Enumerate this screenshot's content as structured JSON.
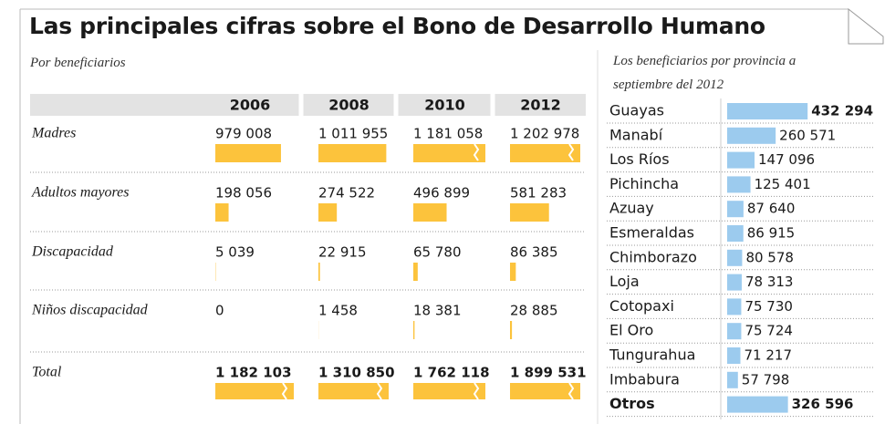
{
  "title": "Las principales cifras sobre el Bono de Desarrollo Humano",
  "chart_data": [
    {
      "type": "bar",
      "subtitle": "Por beneficiarios",
      "categories": [
        "Madres",
        "Adultos mayores",
        "Discapacidad",
        "Niños discapacidad",
        "Total"
      ],
      "series": [
        {
          "name": "2006",
          "color": "#fcc33c",
          "values": [
            979008,
            198056,
            5039,
            0,
            1182103
          ],
          "value_labels": [
            "979 008",
            "198 056",
            "5 039",
            "0",
            "1 182 103"
          ]
        },
        {
          "name": "2008",
          "color": "#fcc33c",
          "values": [
            1011955,
            274522,
            22915,
            1458,
            1310850
          ],
          "value_labels": [
            "1 011 955",
            "274 522",
            "22 915",
            "1 458",
            "1 310 850"
          ]
        },
        {
          "name": "2010",
          "color": "#fcc33c",
          "values": [
            1181058,
            496899,
            65780,
            18381,
            1762118
          ],
          "value_labels": [
            "1 181 058",
            "496 899",
            "65 780",
            "18 381",
            "1 762 118"
          ]
        },
        {
          "name": "2012",
          "color": "#fcc33c",
          "values": [
            1202978,
            581283,
            86385,
            28885,
            1899531
          ],
          "value_labels": [
            "1 202 978",
            "581 283",
            "86 385",
            "28 885",
            "1 899 531"
          ]
        }
      ]
    },
    {
      "type": "bar",
      "subtitle": "Los beneficiarios por provincia a septiembre del 2012",
      "categories": [
        "Guayas",
        "Manabí",
        "Los Ríos",
        "Pichincha",
        "Azuay",
        "Esmeraldas",
        "Chimborazo",
        "Loja",
        "Cotopaxi",
        "El Oro",
        "Tungurahua",
        "Imbabura",
        "Otros"
      ],
      "values": [
        432294,
        260571,
        147096,
        125401,
        87640,
        86915,
        80578,
        78313,
        75730,
        75724,
        71217,
        57798,
        326596
      ],
      "value_labels": [
        "432 294",
        "260 571",
        "147 096",
        "125 401",
        "87 640",
        "86 915",
        "80 578",
        "78 313",
        "75 730",
        "75 724",
        "71 217",
        "57 798",
        "326 596"
      ],
      "color": "#9ccbee"
    }
  ]
}
